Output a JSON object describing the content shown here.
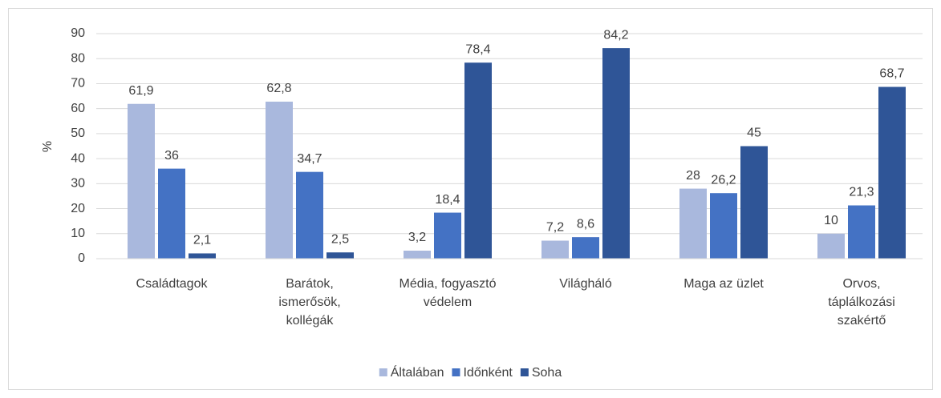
{
  "chart_data": {
    "type": "bar",
    "ylabel": "%",
    "categories": [
      "Családtagok",
      "Barátok,\nismerősök,\nkollégák",
      "Média, fogyasztó\nvédelem",
      "Világháló",
      "Maga az üzlet",
      "Orvos,\ntáplálkozási\nszakértő"
    ],
    "series": [
      {
        "name": "Általában",
        "color": "#a9b8dd",
        "values": [
          61.9,
          62.8,
          3.2,
          7.2,
          28,
          10
        ],
        "value_labels": [
          "61,9",
          "62,8",
          "3,2",
          "7,2",
          "28",
          "10"
        ]
      },
      {
        "name": "Időnként",
        "color": "#4472c4",
        "values": [
          36,
          34.7,
          18.4,
          8.6,
          26.2,
          21.3
        ],
        "value_labels": [
          "36",
          "34,7",
          "18,4",
          "8,6",
          "26,2",
          "21,3"
        ]
      },
      {
        "name": "Soha",
        "color": "#2f5597",
        "values": [
          2.1,
          2.5,
          78.4,
          84.2,
          45,
          68.7
        ],
        "value_labels": [
          "2,1",
          "2,5",
          "78,4",
          "84,2",
          "45",
          "68,7"
        ]
      }
    ],
    "ylim": [
      0,
      90
    ],
    "yticks": [
      0,
      10,
      20,
      30,
      40,
      50,
      60,
      70,
      80,
      90
    ],
    "grid": true,
    "legend": "bottom"
  }
}
